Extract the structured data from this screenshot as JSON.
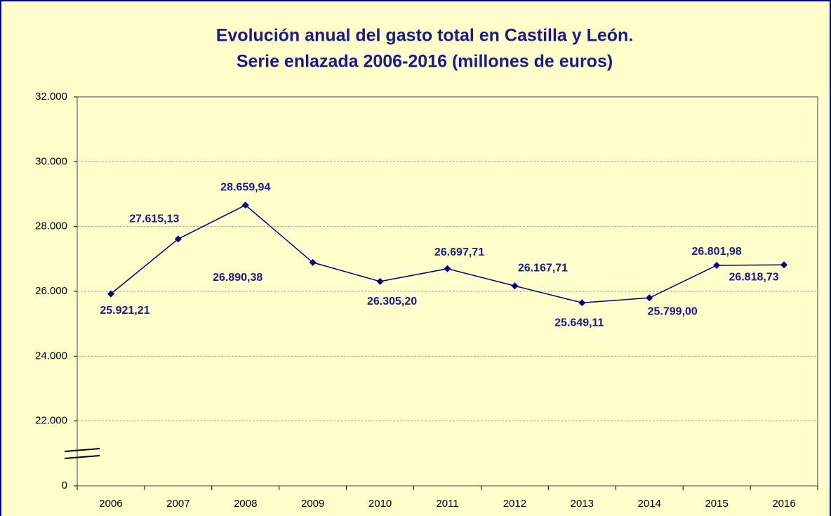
{
  "chart_data": {
    "type": "line",
    "title": [
      "Evolución anual del gasto total en Castilla  y León.",
      "Serie enlazada 2006-2016 (millones de euros)"
    ],
    "categories": [
      "2006",
      "2007",
      "2008",
      "2009",
      "2010",
      "2011",
      "2012",
      "2013",
      "2014",
      "2015",
      "2016"
    ],
    "series": [
      {
        "color": "#000080",
        "values": [
          25921.21,
          27615.13,
          28659.94,
          26890.38,
          26305.2,
          26697.71,
          26167.71,
          25649.11,
          25799.0,
          26801.98,
          26818.73
        ],
        "value_labels": [
          "25.921,21",
          "27.615,13",
          "28.659,94",
          "26.890,38",
          "26.305,20",
          "26.697,71",
          "26.167,71",
          "25.649,11",
          "25.799,00",
          "26.801,98",
          "26.818,73"
        ]
      }
    ],
    "ylim": [
      0,
      32000
    ],
    "axis_break": [
      0,
      20000
    ],
    "yticks": [
      0,
      {
        "value": 22000,
        "label": "22.000"
      },
      {
        "value": 24000,
        "label": "24.000"
      },
      {
        "value": 26000,
        "label": "26.000"
      },
      {
        "value": 28000,
        "label": "28.000"
      },
      {
        "value": 30000,
        "label": "30.000"
      },
      {
        "value": 32000,
        "label": "32.000"
      }
    ],
    "grid": true
  }
}
